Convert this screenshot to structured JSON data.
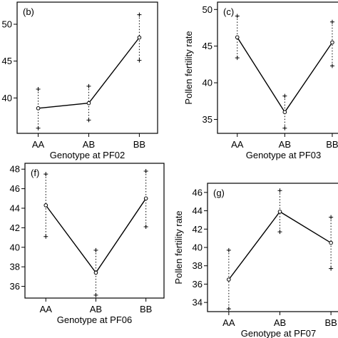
{
  "chart_data": [
    {
      "type": "line",
      "panel_label": "(b)",
      "title": "",
      "xlabel": "Genotype at PF02",
      "ylabel": "",
      "categories": [
        "AA",
        "AB",
        "BB"
      ],
      "mean": [
        38.6,
        39.3,
        48.2
      ],
      "upper": [
        41.2,
        41.6,
        51.3
      ],
      "lower": [
        35.9,
        37.0,
        45.1
      ],
      "ylim": [
        35.2,
        53.0
      ],
      "yticks": [
        40,
        45,
        50
      ],
      "ytick_labels": [
        "40",
        "45",
        "50"
      ]
    },
    {
      "type": "line",
      "panel_label": "(c)",
      "title": "",
      "xlabel": "Genotype at PF03",
      "ylabel": "Pollen fertility rate",
      "categories": [
        "AA",
        "AB",
        "BB"
      ],
      "mean": [
        46.2,
        36.0,
        45.5
      ],
      "upper": [
        49.1,
        38.2,
        48.3
      ],
      "lower": [
        43.4,
        33.8,
        42.3
      ],
      "ylim": [
        33.1,
        51.0
      ],
      "yticks": [
        35,
        40,
        45,
        50
      ],
      "ytick_labels": [
        "35",
        "40",
        "45",
        "50"
      ]
    },
    {
      "type": "line",
      "panel_label": "(f)",
      "title": "",
      "xlabel": "Genotype at PF06",
      "ylabel": "",
      "categories": [
        "AA",
        "AB",
        "BB"
      ],
      "mean": [
        44.3,
        37.4,
        45.0
      ],
      "upper": [
        47.5,
        39.7,
        47.8
      ],
      "lower": [
        41.1,
        35.1,
        42.1
      ],
      "ylim": [
        34.8,
        48.6
      ],
      "yticks": [
        36,
        38,
        40,
        42,
        44,
        46,
        48
      ],
      "ytick_labels": [
        "36",
        "38",
        "40",
        "42",
        "44",
        "46",
        "48"
      ]
    },
    {
      "type": "line",
      "panel_label": "(g)",
      "title": "",
      "xlabel": "Genotype at PF07",
      "ylabel": "Pollen fertility rate",
      "categories": [
        "AA",
        "AB",
        "BB"
      ],
      "mean": [
        36.5,
        43.9,
        40.5
      ],
      "upper": [
        39.7,
        46.2,
        43.3
      ],
      "lower": [
        33.3,
        41.7,
        37.7
      ],
      "ylim": [
        33.0,
        47.0
      ],
      "yticks": [
        34,
        36,
        38,
        40,
        42,
        44,
        46
      ],
      "ytick_labels": [
        "34",
        "36",
        "38",
        "40",
        "42",
        "44",
        "46"
      ]
    }
  ]
}
